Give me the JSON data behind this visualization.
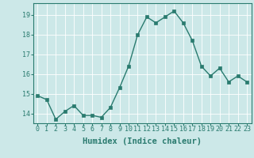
{
  "x": [
    0,
    1,
    2,
    3,
    4,
    5,
    6,
    7,
    8,
    9,
    10,
    11,
    12,
    13,
    14,
    15,
    16,
    17,
    18,
    19,
    20,
    21,
    22,
    23
  ],
  "y": [
    14.9,
    14.7,
    13.7,
    14.1,
    14.4,
    13.9,
    13.9,
    13.8,
    14.3,
    15.3,
    16.4,
    18.0,
    18.9,
    18.6,
    18.9,
    19.2,
    18.6,
    17.7,
    16.4,
    15.9,
    16.3,
    15.6,
    15.9,
    15.6
  ],
  "color": "#2a7b6f",
  "bg_color": "#cce8e8",
  "grid_color": "#ffffff",
  "xlabel": "Humidex (Indice chaleur)",
  "ylim": [
    13.5,
    19.6
  ],
  "xlim": [
    -0.5,
    23.5
  ],
  "yticks": [
    14,
    15,
    16,
    17,
    18,
    19
  ],
  "xticks": [
    0,
    1,
    2,
    3,
    4,
    5,
    6,
    7,
    8,
    9,
    10,
    11,
    12,
    13,
    14,
    15,
    16,
    17,
    18,
    19,
    20,
    21,
    22,
    23
  ],
  "marker": "s",
  "markersize": 2.5,
  "linewidth": 1.0,
  "xlabel_fontsize": 7.5,
  "tick_fontsize": 6.0,
  "grid_linewidth": 0.6
}
